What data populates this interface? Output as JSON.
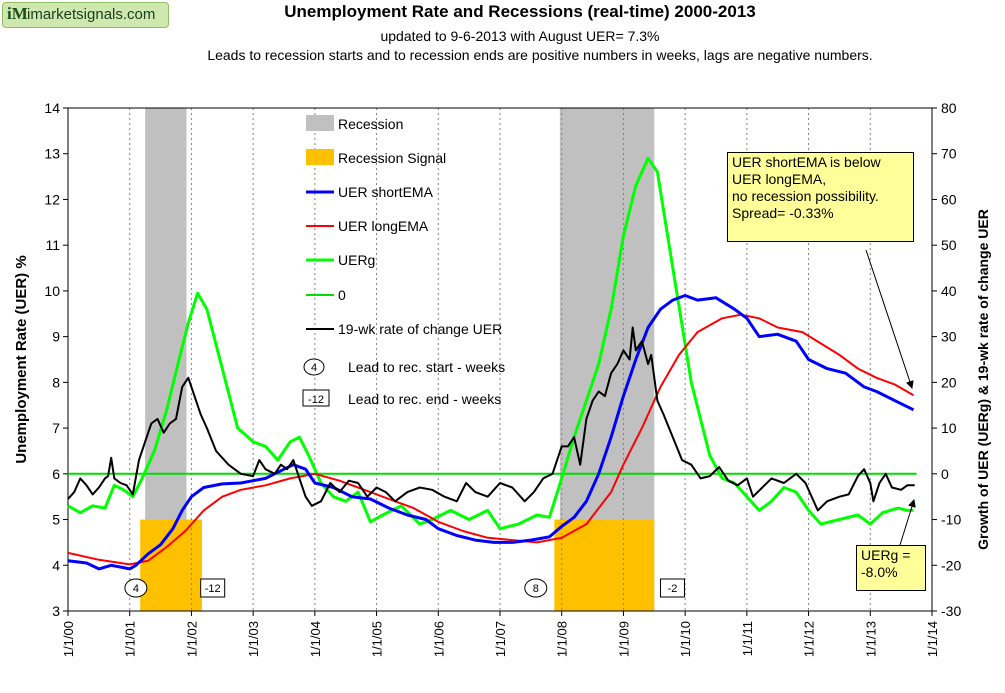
{
  "header": {
    "logo_mark": "iM",
    "logo_text": "imarketsignals.com",
    "title": "Unemployment Rate and Recessions (real-time) 2000-2013",
    "subtitle": "updated to 9-6-2013  with  August UER= 7.3%",
    "note": "Leads to recession starts and to recession ends are positive numbers in weeks, lags are negative numbers."
  },
  "annotations": {
    "spread_note": [
      "UER shortEMA  is below",
      "UER longEMA,",
      "no recession possibility.",
      "Spread= -0.33%"
    ],
    "uerg_note": [
      "UERg =",
      "-8.0%"
    ],
    "leads": [
      {
        "label": "4",
        "x": 2001.1,
        "type": "start"
      },
      {
        "label": "-12",
        "x": 2002.15,
        "type": "end"
      },
      {
        "label": "8",
        "x": 2007.58,
        "type": "start"
      },
      {
        "label": "-2",
        "x": 2009.6,
        "type": "end"
      }
    ]
  },
  "colors": {
    "recession": "#c0c0c0",
    "signal": "#ffc000",
    "short_ema": "#0000ff",
    "long_ema": "#ff0000",
    "uerg": "#00ff00",
    "zero": "#00dd00",
    "roc": "#000000",
    "note_bg": "#ffff99"
  },
  "chart_data": {
    "type": "line",
    "xlabel": "",
    "ylabel_left": "Unemployment Rate (UER) %",
    "ylabel_right": "Growth of UER (UERg) & 19-wk rate of change UER",
    "xlim": [
      2000,
      2014
    ],
    "ylim_left": [
      3,
      14
    ],
    "ylim_right": [
      -30,
      80
    ],
    "left_ticks": [
      3,
      4,
      5,
      6,
      7,
      8,
      9,
      10,
      11,
      12,
      13,
      14
    ],
    "right_ticks": [
      -30,
      -20,
      -10,
      0,
      10,
      20,
      30,
      40,
      50,
      60,
      70,
      80
    ],
    "x_ticks": [
      "1/1/00",
      "1/1/01",
      "1/1/02",
      "1/1/03",
      "1/1/04",
      "1/1/05",
      "1/1/06",
      "1/1/07",
      "1/1/08",
      "1/1/09",
      "1/1/10",
      "1/1/11",
      "1/1/12",
      "1/1/13",
      "1/1/14"
    ],
    "recessions": [
      [
        2001.25,
        2001.92
      ],
      [
        2007.97,
        2009.5
      ]
    ],
    "recession_signals": [
      [
        2001.17,
        2002.17
      ],
      [
        2007.88,
        2009.5
      ]
    ],
    "signal_top": 5,
    "legend": [
      "Recession",
      "Recession Signal",
      "UER shortEMA",
      "UER longEMA",
      "UERg",
      "0",
      "19-wk rate of change UER",
      "Lead to rec. start - weeks",
      "Lead to rec. end - weeks"
    ],
    "series": [
      {
        "name": "UER shortEMA",
        "axis": "left",
        "points": [
          [
            2000,
            4.1
          ],
          [
            2000.3,
            4.05
          ],
          [
            2000.5,
            3.92
          ],
          [
            2000.7,
            4.0
          ],
          [
            2000.9,
            3.95
          ],
          [
            2001.0,
            3.92
          ],
          [
            2001.1,
            4.0
          ],
          [
            2001.3,
            4.25
          ],
          [
            2001.5,
            4.45
          ],
          [
            2001.7,
            4.8
          ],
          [
            2001.85,
            5.2
          ],
          [
            2002.0,
            5.5
          ],
          [
            2002.2,
            5.7
          ],
          [
            2002.5,
            5.78
          ],
          [
            2002.8,
            5.8
          ],
          [
            2003.0,
            5.85
          ],
          [
            2003.2,
            5.9
          ],
          [
            2003.5,
            6.1
          ],
          [
            2003.65,
            6.2
          ],
          [
            2003.85,
            6.1
          ],
          [
            2004.0,
            5.8
          ],
          [
            2004.3,
            5.7
          ],
          [
            2004.6,
            5.5
          ],
          [
            2004.9,
            5.45
          ],
          [
            2005.2,
            5.25
          ],
          [
            2005.5,
            5.1
          ],
          [
            2005.8,
            5.0
          ],
          [
            2006.0,
            4.8
          ],
          [
            2006.3,
            4.65
          ],
          [
            2006.6,
            4.55
          ],
          [
            2006.9,
            4.5
          ],
          [
            2007.2,
            4.5
          ],
          [
            2007.5,
            4.55
          ],
          [
            2007.8,
            4.62
          ],
          [
            2008.0,
            4.85
          ],
          [
            2008.2,
            5.05
          ],
          [
            2008.4,
            5.4
          ],
          [
            2008.6,
            6.0
          ],
          [
            2008.8,
            6.8
          ],
          [
            2009.0,
            7.7
          ],
          [
            2009.2,
            8.5
          ],
          [
            2009.4,
            9.2
          ],
          [
            2009.6,
            9.6
          ],
          [
            2009.8,
            9.8
          ],
          [
            2010.0,
            9.9
          ],
          [
            2010.2,
            9.8
          ],
          [
            2010.5,
            9.85
          ],
          [
            2010.8,
            9.6
          ],
          [
            2011.0,
            9.4
          ],
          [
            2011.2,
            9.0
          ],
          [
            2011.5,
            9.05
          ],
          [
            2011.8,
            8.9
          ],
          [
            2012.0,
            8.5
          ],
          [
            2012.3,
            8.3
          ],
          [
            2012.6,
            8.2
          ],
          [
            2012.9,
            7.9
          ],
          [
            2013.1,
            7.8
          ],
          [
            2013.4,
            7.6
          ],
          [
            2013.7,
            7.4
          ]
        ]
      },
      {
        "name": "UER longEMA",
        "axis": "left",
        "points": [
          [
            2000,
            4.27
          ],
          [
            2000.5,
            4.12
          ],
          [
            2001.0,
            4.02
          ],
          [
            2001.3,
            4.1
          ],
          [
            2001.6,
            4.4
          ],
          [
            2001.9,
            4.75
          ],
          [
            2002.2,
            5.2
          ],
          [
            2002.5,
            5.5
          ],
          [
            2002.8,
            5.65
          ],
          [
            2003.2,
            5.75
          ],
          [
            2003.6,
            5.9
          ],
          [
            2004.0,
            6.0
          ],
          [
            2004.4,
            5.85
          ],
          [
            2004.8,
            5.65
          ],
          [
            2005.2,
            5.45
          ],
          [
            2005.6,
            5.25
          ],
          [
            2006.0,
            4.95
          ],
          [
            2006.4,
            4.75
          ],
          [
            2006.8,
            4.6
          ],
          [
            2007.2,
            4.55
          ],
          [
            2007.6,
            4.5
          ],
          [
            2008.0,
            4.6
          ],
          [
            2008.4,
            4.9
          ],
          [
            2008.8,
            5.6
          ],
          [
            2009.0,
            6.2
          ],
          [
            2009.3,
            7.0
          ],
          [
            2009.6,
            7.9
          ],
          [
            2009.9,
            8.6
          ],
          [
            2010.2,
            9.1
          ],
          [
            2010.6,
            9.4
          ],
          [
            2010.9,
            9.48
          ],
          [
            2011.2,
            9.4
          ],
          [
            2011.5,
            9.2
          ],
          [
            2011.9,
            9.1
          ],
          [
            2012.2,
            8.85
          ],
          [
            2012.5,
            8.6
          ],
          [
            2012.8,
            8.3
          ],
          [
            2013.1,
            8.1
          ],
          [
            2013.4,
            7.95
          ],
          [
            2013.7,
            7.72
          ]
        ]
      },
      {
        "name": "UERg",
        "axis": "right",
        "points": [
          [
            2000,
            -7
          ],
          [
            2000.2,
            -8.5
          ],
          [
            2000.4,
            -7
          ],
          [
            2000.6,
            -7.5
          ],
          [
            2000.75,
            -2.5
          ],
          [
            2000.9,
            -3.5
          ],
          [
            2001.05,
            -5
          ],
          [
            2001.2,
            -1
          ],
          [
            2001.4,
            5
          ],
          [
            2001.6,
            14
          ],
          [
            2001.8,
            25
          ],
          [
            2001.95,
            33
          ],
          [
            2002.1,
            39.5
          ],
          [
            2002.25,
            36
          ],
          [
            2002.5,
            23
          ],
          [
            2002.75,
            10
          ],
          [
            2003.0,
            7
          ],
          [
            2003.2,
            6
          ],
          [
            2003.4,
            3
          ],
          [
            2003.6,
            7
          ],
          [
            2003.75,
            8
          ],
          [
            2003.9,
            4
          ],
          [
            2004.1,
            -2
          ],
          [
            2004.3,
            -5
          ],
          [
            2004.5,
            -6
          ],
          [
            2004.7,
            -4
          ],
          [
            2004.9,
            -10.5
          ],
          [
            2005.1,
            -9
          ],
          [
            2005.4,
            -7
          ],
          [
            2005.7,
            -11
          ],
          [
            2005.9,
            -10
          ],
          [
            2006.2,
            -8
          ],
          [
            2006.5,
            -10
          ],
          [
            2006.8,
            -8
          ],
          [
            2007.0,
            -12
          ],
          [
            2007.3,
            -11
          ],
          [
            2007.6,
            -9
          ],
          [
            2007.8,
            -9.5
          ],
          [
            2008.0,
            -1
          ],
          [
            2008.2,
            8
          ],
          [
            2008.4,
            16
          ],
          [
            2008.6,
            24
          ],
          [
            2008.8,
            36
          ],
          [
            2009.0,
            52
          ],
          [
            2009.2,
            63
          ],
          [
            2009.4,
            69
          ],
          [
            2009.55,
            66
          ],
          [
            2009.8,
            45
          ],
          [
            2010.1,
            20
          ],
          [
            2010.4,
            4
          ],
          [
            2010.6,
            -1
          ],
          [
            2010.8,
            -2
          ],
          [
            2011.0,
            -5
          ],
          [
            2011.2,
            -8
          ],
          [
            2011.4,
            -6
          ],
          [
            2011.6,
            -3
          ],
          [
            2011.8,
            -4
          ],
          [
            2012.0,
            -8
          ],
          [
            2012.2,
            -11
          ],
          [
            2012.5,
            -10
          ],
          [
            2012.8,
            -9
          ],
          [
            2013.0,
            -11
          ],
          [
            2013.2,
            -8.5
          ],
          [
            2013.45,
            -7.5
          ],
          [
            2013.6,
            -8
          ],
          [
            2013.7,
            -8
          ]
        ]
      },
      {
        "name": "0",
        "axis": "right",
        "points": [
          [
            2000,
            0
          ],
          [
            2013.75,
            0
          ]
        ]
      },
      {
        "name": "19-wk rate of change UER",
        "axis": "right",
        "points": [
          [
            2000,
            -5.5
          ],
          [
            2000.1,
            -4
          ],
          [
            2000.2,
            -1
          ],
          [
            2000.3,
            -2.5
          ],
          [
            2000.4,
            -4.5
          ],
          [
            2000.5,
            -3
          ],
          [
            2000.6,
            -1
          ],
          [
            2000.65,
            -0.5
          ],
          [
            2000.7,
            3.5
          ],
          [
            2000.75,
            -1
          ],
          [
            2000.85,
            -2
          ],
          [
            2000.95,
            -2.5
          ],
          [
            2001.05,
            -4.5
          ],
          [
            2001.15,
            3
          ],
          [
            2001.25,
            7
          ],
          [
            2001.35,
            11
          ],
          [
            2001.45,
            12
          ],
          [
            2001.55,
            9
          ],
          [
            2001.65,
            11
          ],
          [
            2001.75,
            12
          ],
          [
            2001.85,
            19
          ],
          [
            2001.95,
            21
          ],
          [
            2002.05,
            17
          ],
          [
            2002.15,
            13
          ],
          [
            2002.25,
            10
          ],
          [
            2002.4,
            5
          ],
          [
            2002.6,
            2
          ],
          [
            2002.8,
            0
          ],
          [
            2003.0,
            -0.5
          ],
          [
            2003.1,
            3
          ],
          [
            2003.2,
            1
          ],
          [
            2003.35,
            0
          ],
          [
            2003.45,
            2
          ],
          [
            2003.55,
            1
          ],
          [
            2003.65,
            3
          ],
          [
            2003.75,
            -1
          ],
          [
            2003.85,
            -5
          ],
          [
            2003.95,
            -7
          ],
          [
            2004.1,
            -6
          ],
          [
            2004.25,
            -2
          ],
          [
            2004.4,
            -4
          ],
          [
            2004.55,
            -1.5
          ],
          [
            2004.7,
            -2
          ],
          [
            2004.85,
            -5
          ],
          [
            2005.0,
            -3
          ],
          [
            2005.15,
            -4
          ],
          [
            2005.3,
            -6
          ],
          [
            2005.5,
            -4
          ],
          [
            2005.7,
            -3
          ],
          [
            2005.9,
            -3.5
          ],
          [
            2006.1,
            -5
          ],
          [
            2006.3,
            -6
          ],
          [
            2006.45,
            -2
          ],
          [
            2006.6,
            -4
          ],
          [
            2006.8,
            -5
          ],
          [
            2007.0,
            -2
          ],
          [
            2007.2,
            -3
          ],
          [
            2007.4,
            -6
          ],
          [
            2007.55,
            -4
          ],
          [
            2007.7,
            -1
          ],
          [
            2007.85,
            0
          ],
          [
            2008.0,
            6
          ],
          [
            2008.1,
            6
          ],
          [
            2008.2,
            8
          ],
          [
            2008.3,
            2
          ],
          [
            2008.4,
            12
          ],
          [
            2008.5,
            16
          ],
          [
            2008.6,
            18
          ],
          [
            2008.7,
            17
          ],
          [
            2008.8,
            22
          ],
          [
            2008.9,
            24
          ],
          [
            2009.0,
            27
          ],
          [
            2009.1,
            25
          ],
          [
            2009.15,
            32
          ],
          [
            2009.2,
            27
          ],
          [
            2009.3,
            29
          ],
          [
            2009.4,
            24
          ],
          [
            2009.45,
            26
          ],
          [
            2009.55,
            16
          ],
          [
            2009.65,
            13
          ],
          [
            2009.8,
            8
          ],
          [
            2009.95,
            3
          ],
          [
            2010.1,
            2
          ],
          [
            2010.25,
            -1
          ],
          [
            2010.4,
            -0.5
          ],
          [
            2010.55,
            1.5
          ],
          [
            2010.7,
            -1.5
          ],
          [
            2010.85,
            -2.5
          ],
          [
            2011.0,
            -1
          ],
          [
            2011.1,
            -5
          ],
          [
            2011.25,
            -3
          ],
          [
            2011.4,
            -1
          ],
          [
            2011.6,
            -2
          ],
          [
            2011.8,
            0
          ],
          [
            2011.95,
            -2
          ],
          [
            2012.15,
            -8
          ],
          [
            2012.3,
            -6
          ],
          [
            2012.5,
            -5
          ],
          [
            2012.65,
            -4.5
          ],
          [
            2012.8,
            -0.5
          ],
          [
            2012.9,
            1
          ],
          [
            2013.0,
            -2
          ],
          [
            2013.05,
            -6
          ],
          [
            2013.15,
            -2
          ],
          [
            2013.25,
            0
          ],
          [
            2013.35,
            -3
          ],
          [
            2013.5,
            -3.5
          ],
          [
            2013.6,
            -2.5
          ],
          [
            2013.72,
            -2.5
          ]
        ]
      }
    ]
  }
}
